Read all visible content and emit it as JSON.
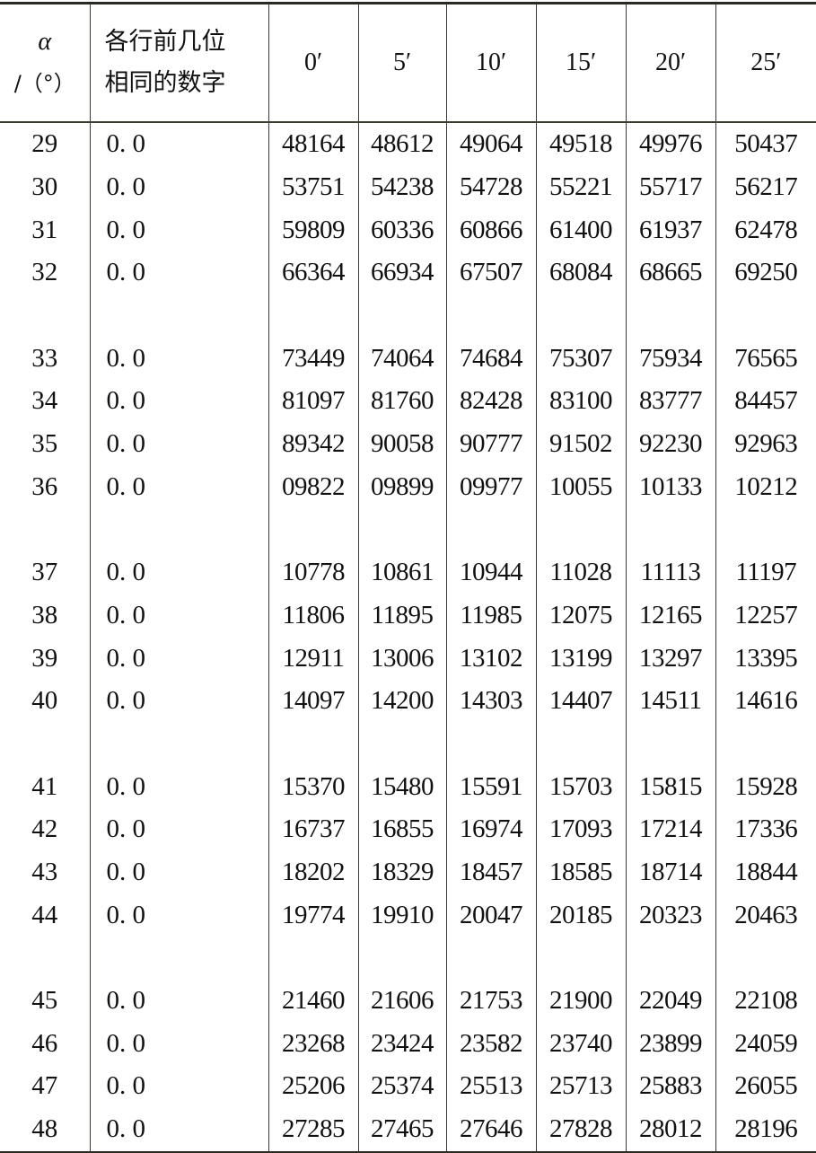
{
  "header": {
    "alpha_symbol": "α",
    "alpha_unit": "/（°）",
    "prefix_line1": "各行前几位",
    "prefix_line2": "相同的数字",
    "minutes": [
      "0′",
      "5′",
      "10′",
      "15′",
      "20′",
      "25′"
    ]
  },
  "groups": [
    [
      {
        "deg": "29",
        "prefix": "0. 0",
        "values": [
          "48164",
          "48612",
          "49064",
          "49518",
          "49976",
          "50437"
        ]
      },
      {
        "deg": "30",
        "prefix": "0. 0",
        "values": [
          "53751",
          "54238",
          "54728",
          "55221",
          "55717",
          "56217"
        ]
      },
      {
        "deg": "31",
        "prefix": "0. 0",
        "values": [
          "59809",
          "60336",
          "60866",
          "61400",
          "61937",
          "62478"
        ]
      },
      {
        "deg": "32",
        "prefix": "0. 0",
        "values": [
          "66364",
          "66934",
          "67507",
          "68084",
          "68665",
          "69250"
        ]
      }
    ],
    [
      {
        "deg": "33",
        "prefix": "0. 0",
        "values": [
          "73449",
          "74064",
          "74684",
          "75307",
          "75934",
          "76565"
        ]
      },
      {
        "deg": "34",
        "prefix": "0. 0",
        "values": [
          "81097",
          "81760",
          "82428",
          "83100",
          "83777",
          "84457"
        ]
      },
      {
        "deg": "35",
        "prefix": "0. 0",
        "values": [
          "89342",
          "90058",
          "90777",
          "91502",
          "92230",
          "92963"
        ]
      },
      {
        "deg": "36",
        "prefix": "0. 0",
        "values": [
          "09822",
          "09899",
          "09977",
          "10055",
          "10133",
          "10212"
        ]
      }
    ],
    [
      {
        "deg": "37",
        "prefix": "0. 0",
        "values": [
          "10778",
          "10861",
          "10944",
          "11028",
          "11113",
          "11197"
        ]
      },
      {
        "deg": "38",
        "prefix": "0. 0",
        "values": [
          "11806",
          "11895",
          "11985",
          "12075",
          "12165",
          "12257"
        ]
      },
      {
        "deg": "39",
        "prefix": "0. 0",
        "values": [
          "12911",
          "13006",
          "13102",
          "13199",
          "13297",
          "13395"
        ]
      },
      {
        "deg": "40",
        "prefix": "0. 0",
        "values": [
          "14097",
          "14200",
          "14303",
          "14407",
          "14511",
          "14616"
        ]
      }
    ],
    [
      {
        "deg": "41",
        "prefix": "0. 0",
        "values": [
          "15370",
          "15480",
          "15591",
          "15703",
          "15815",
          "15928"
        ]
      },
      {
        "deg": "42",
        "prefix": "0. 0",
        "values": [
          "16737",
          "16855",
          "16974",
          "17093",
          "17214",
          "17336"
        ]
      },
      {
        "deg": "43",
        "prefix": "0. 0",
        "values": [
          "18202",
          "18329",
          "18457",
          "18585",
          "18714",
          "18844"
        ]
      },
      {
        "deg": "44",
        "prefix": "0. 0",
        "values": [
          "19774",
          "19910",
          "20047",
          "20185",
          "20323",
          "20463"
        ]
      }
    ],
    [
      {
        "deg": "45",
        "prefix": "0. 0",
        "values": [
          "21460",
          "21606",
          "21753",
          "21900",
          "22049",
          "22108"
        ]
      },
      {
        "deg": "46",
        "prefix": "0. 0",
        "values": [
          "23268",
          "23424",
          "23582",
          "23740",
          "23899",
          "24059"
        ]
      },
      {
        "deg": "47",
        "prefix": "0. 0",
        "values": [
          "25206",
          "25374",
          "25513",
          "25713",
          "25883",
          "26055"
        ]
      },
      {
        "deg": "48",
        "prefix": "0. 0",
        "values": [
          "27285",
          "27465",
          "27646",
          "27828",
          "28012",
          "28196"
        ]
      }
    ]
  ]
}
